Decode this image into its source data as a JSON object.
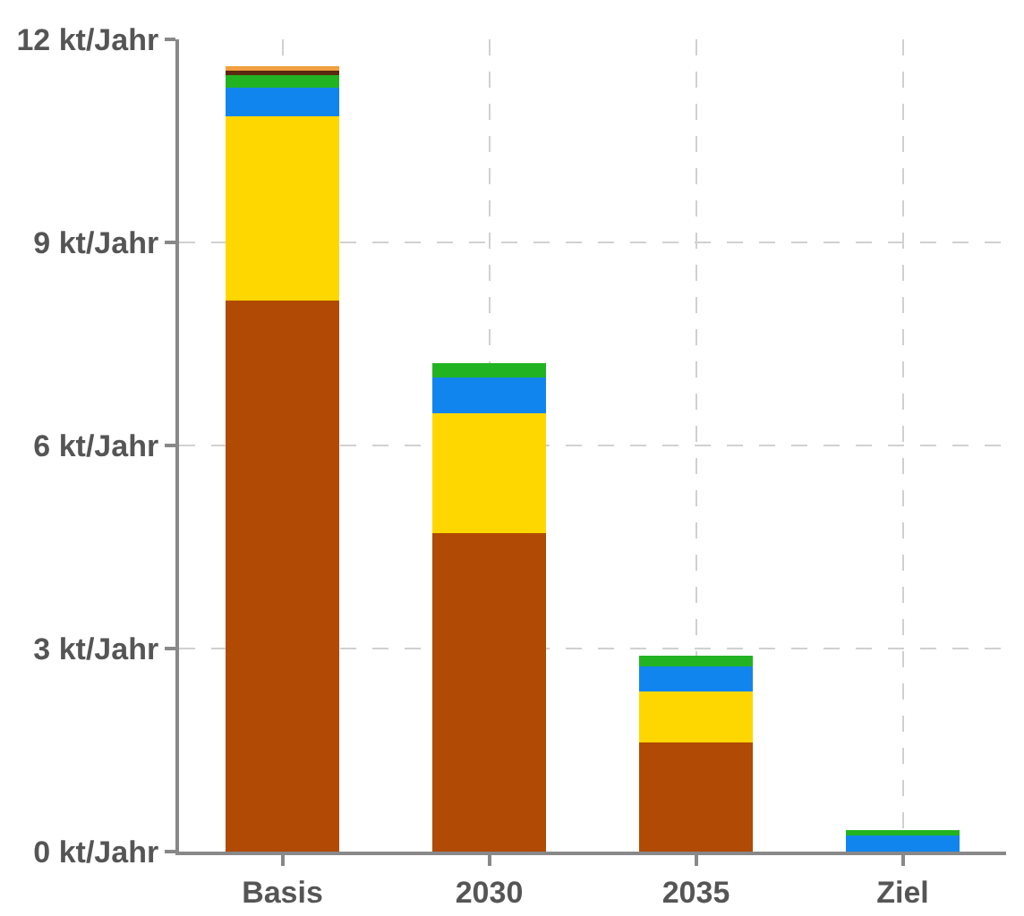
{
  "chart_data": {
    "type": "bar",
    "stacked": true,
    "categories": [
      "Basis",
      "2030",
      "2035",
      "Ziel"
    ],
    "series": [
      {
        "color": "#b04a04",
        "values": [
          8.14,
          4.7,
          1.61,
          0
        ]
      },
      {
        "color": "#ffd700",
        "values": [
          2.72,
          1.77,
          0.76,
          0
        ]
      },
      {
        "color": "#1185ee",
        "values": [
          0.43,
          0.54,
          0.37,
          0.24
        ]
      },
      {
        "color": "#22b322",
        "values": [
          0.18,
          0.2,
          0.15,
          0.08
        ]
      },
      {
        "color": "#5a2a10",
        "values": [
          0.07,
          null,
          null,
          null
        ]
      },
      {
        "color": "#f0a040",
        "values": [
          0.07,
          null,
          null,
          null
        ]
      }
    ],
    "ylim": [
      0,
      12
    ],
    "yticks": [
      {
        "value": 0,
        "label": "0 kt/Jahr"
      },
      {
        "value": 3,
        "label": "3 kt/Jahr"
      },
      {
        "value": 6,
        "label": "6 kt/Jahr"
      },
      {
        "value": 9,
        "label": "9 kt/Jahr"
      },
      {
        "value": 12,
        "label": "12 kt/Jahr"
      }
    ],
    "grid": true
  }
}
